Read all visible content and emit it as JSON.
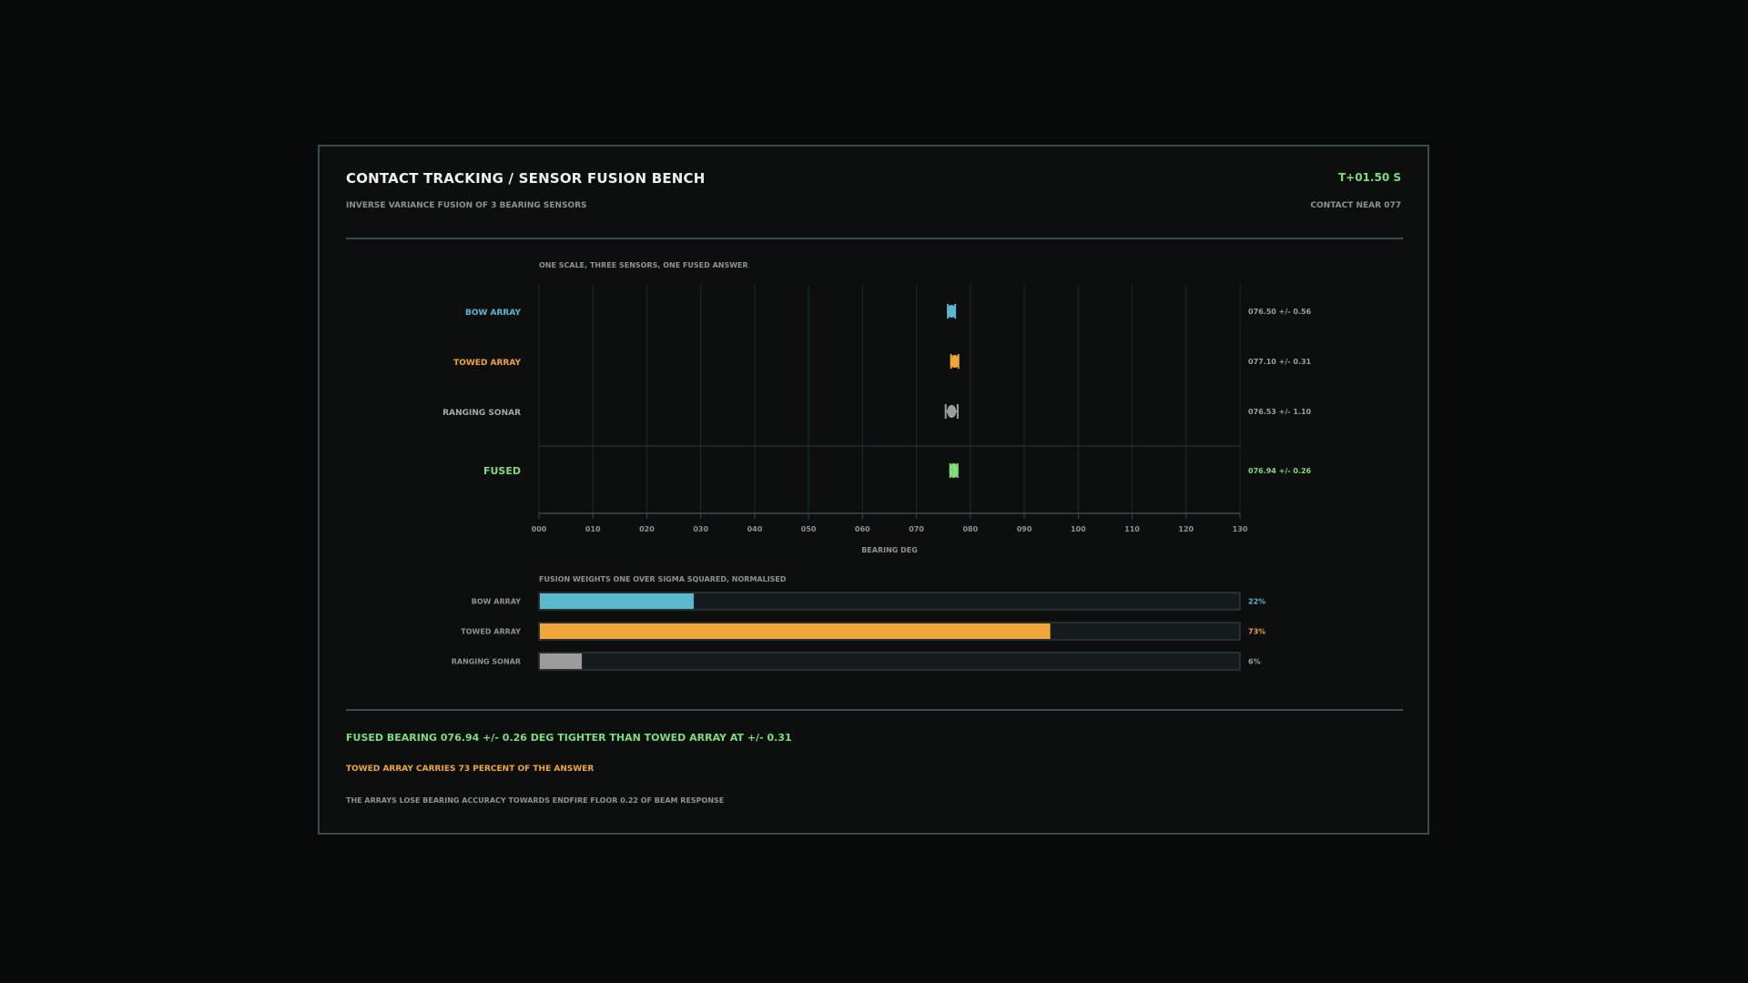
{
  "header": {
    "title": "CONTACT TRACKING / SENSOR FUSION BENCH",
    "subtitle": "INVERSE VARIANCE FUSION OF 3 BEARING SENSORS",
    "time": "T+01.50 S",
    "contact": "CONTACT NEAR 077"
  },
  "colors": {
    "bow": "#5ab8cf",
    "towed": "#f0a63a",
    "ranging": "#9c9c9c",
    "fused": "#7edc7a"
  },
  "chart_data": [
    {
      "type": "scatter",
      "title": "ONE SCALE, THREE SENSORS, ONE FUSED ANSWER",
      "xlabel": "BEARING DEG",
      "xlim": [
        0,
        130
      ],
      "tick_labels": [
        "000",
        "010",
        "020",
        "030",
        "040",
        "050",
        "060",
        "070",
        "080",
        "090",
        "100",
        "110",
        "120",
        "130"
      ],
      "grid": true,
      "series": [
        {
          "name": "BOW ARRAY",
          "bearing": 76.5,
          "sigma": 0.56,
          "label": "076.50 +/- 0.56",
          "color_key": "bow"
        },
        {
          "name": "TOWED ARRAY",
          "bearing": 77.1,
          "sigma": 0.31,
          "label": "077.10 +/- 0.31",
          "color_key": "towed"
        },
        {
          "name": "RANGING SONAR",
          "bearing": 76.53,
          "sigma": 1.1,
          "label": "076.53 +/- 1.10",
          "color_key": "ranging"
        },
        {
          "name": "FUSED",
          "bearing": 76.94,
          "sigma": 0.26,
          "label": "076.94 +/- 0.26",
          "color_key": "fused"
        }
      ]
    },
    {
      "type": "bar",
      "title": "FUSION WEIGHTS   ONE OVER SIGMA SQUARED, NORMALISED",
      "categories": [
        "BOW ARRAY",
        "TOWED ARRAY",
        "RANGING SONAR"
      ],
      "values": [
        22,
        73,
        6
      ],
      "value_labels": [
        "22%",
        "73%",
        "6%"
      ],
      "ylim": [
        0,
        100
      ]
    }
  ],
  "summary": {
    "line1": "FUSED BEARING 076.94 +/- 0.26 DEG   TIGHTER THAN TOWED ARRAY AT +/- 0.31",
    "line2": "TOWED ARRAY CARRIES 73 PERCENT OF THE ANSWER",
    "line3": "THE ARRAYS LOSE BEARING ACCURACY TOWARDS ENDFIRE   FLOOR 0.22 OF BEAM RESPONSE"
  }
}
